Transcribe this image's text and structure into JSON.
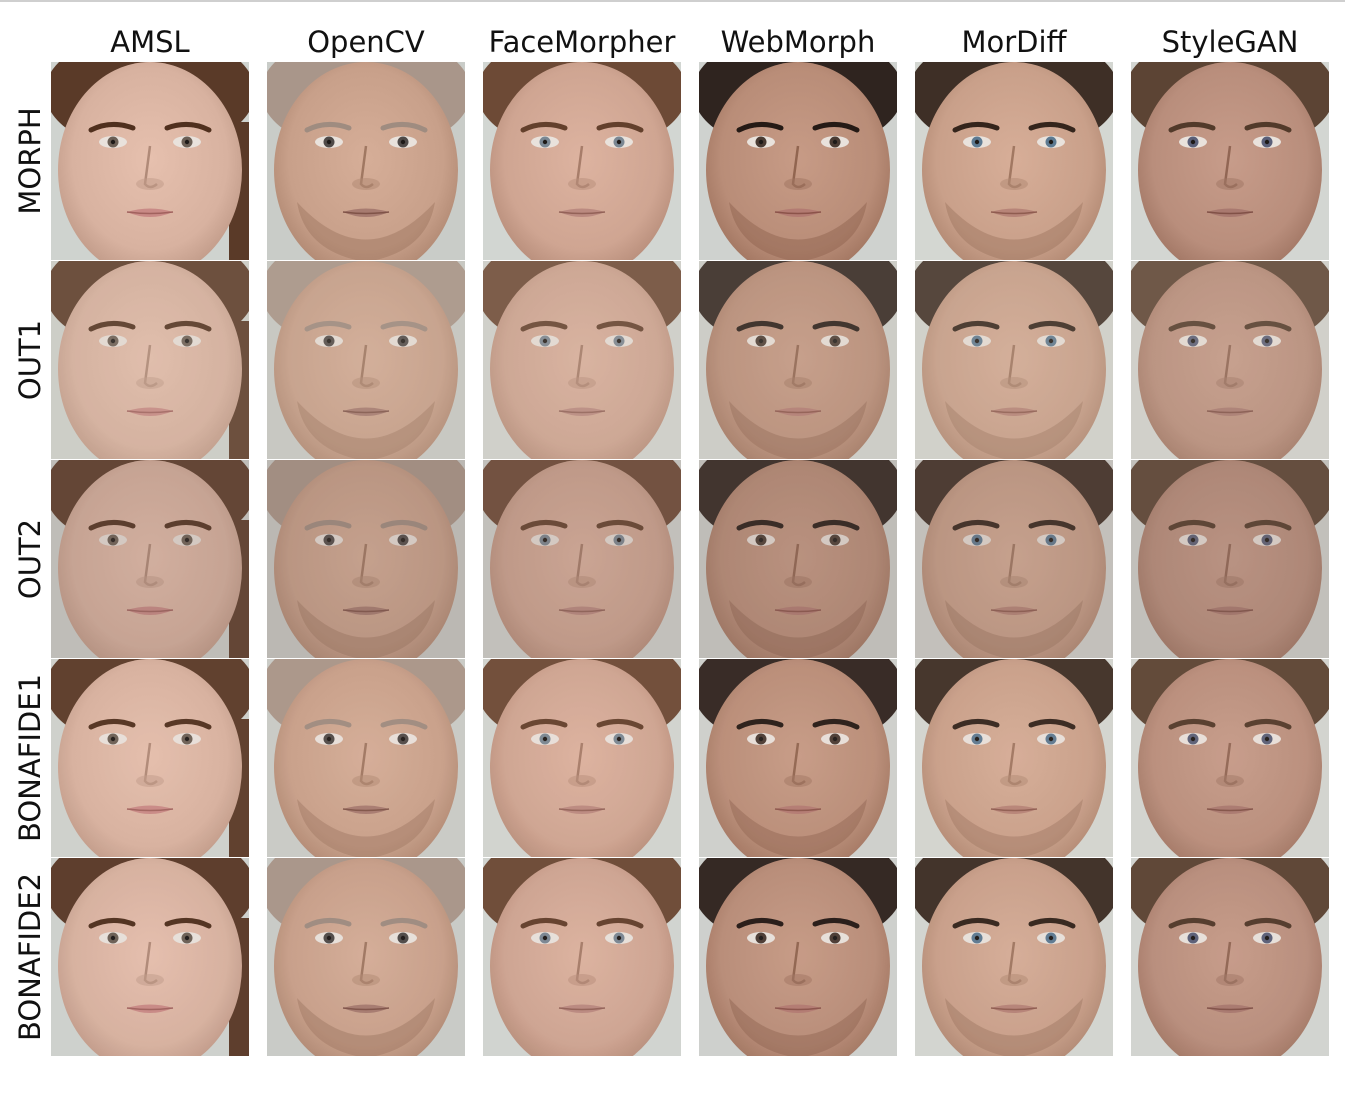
{
  "figure": {
    "columns": [
      "AMSL",
      "OpenCV",
      "FaceMorpher",
      "WebMorph",
      "MorDiff",
      "StyleGAN"
    ],
    "rows": [
      "MORPH",
      "OUT1",
      "OUT2",
      "BONAFIDE1",
      "BONAFIDE2"
    ]
  },
  "palette": {
    "columns": [
      {
        "skin": "#d8b2a0",
        "hair": "#5a3a28",
        "bg": "#cfd3cf",
        "eye": "#6b5f55",
        "lip": "#c98a86",
        "beard": false,
        "female": true
      },
      {
        "skin": "#c8a08a",
        "hair": "#a9968a",
        "bg": "#c9ccc8",
        "eye": "#4f4a48",
        "lip": "#a77b70",
        "beard": true,
        "female": false
      },
      {
        "skin": "#cfa592",
        "hair": "#6d4a36",
        "bg": "#d2d6d2",
        "eye": "#7a8793",
        "lip": "#bb8a80",
        "beard": false,
        "female": false
      },
      {
        "skin": "#b98d78",
        "hair": "#2f241f",
        "bg": "#cfd2cf",
        "eye": "#4a3b33",
        "lip": "#b37b72",
        "beard": true,
        "female": false
      },
      {
        "skin": "#c9a08a",
        "hair": "#3e2f26",
        "bg": "#d4d7d2",
        "eye": "#5d7a92",
        "lip": "#b78478",
        "beard": true,
        "female": false
      },
      {
        "skin": "#b98e7c",
        "hair": "#5c4434",
        "bg": "#d3d6d2",
        "eye": "#5a5f78",
        "lip": "#a9796f",
        "beard": false,
        "female": false
      }
    ],
    "row_tones": [
      {
        "tint": "#ffffff",
        "opacity": 0.0
      },
      {
        "tint": "#c7b8a8",
        "opacity": 0.18
      },
      {
        "tint": "#8a7468",
        "opacity": 0.22
      },
      {
        "tint": "#e2c2b2",
        "opacity": 0.06
      },
      {
        "tint": "#d8b8a6",
        "opacity": 0.04
      }
    ]
  }
}
